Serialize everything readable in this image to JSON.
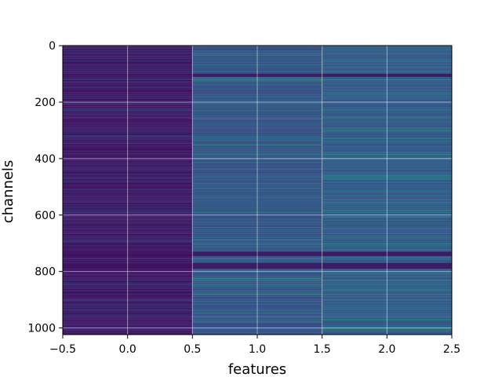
{
  "chart_data": {
    "type": "heatmap",
    "title": "",
    "xlabel": "features",
    "ylabel": "channels",
    "xlim": [
      -0.5,
      2.5
    ],
    "ylim": [
      1023.5,
      -0.5
    ],
    "y_inverted": true,
    "columns": [
      0,
      1,
      2
    ],
    "rows": 1024,
    "colormap": "viridis",
    "value_range": [
      0,
      1
    ],
    "grid": true,
    "x_ticks": [
      -0.5,
      0.0,
      0.5,
      1.0,
      1.5,
      2.0,
      2.5
    ],
    "x_tick_labels": [
      "−0.5",
      "0.0",
      "0.5",
      "1.0",
      "1.5",
      "2.0",
      "2.5"
    ],
    "y_ticks": [
      0,
      200,
      400,
      600,
      800,
      1000
    ],
    "y_tick_labels": [
      "0",
      "200",
      "400",
      "600",
      "800",
      "1000"
    ],
    "column_mean_level": [
      0.1,
      0.28,
      0.3
    ],
    "bright_channels": [
      {
        "channel": 30,
        "level": 0.55
      },
      {
        "channel": 65,
        "level": 0.5
      },
      {
        "channel": 120,
        "level": 0.6
      },
      {
        "channel": 205,
        "level": 0.45
      },
      {
        "channel": 230,
        "level": 0.55
      },
      {
        "channel": 255,
        "level": 0.5
      },
      {
        "channel": 330,
        "level": 0.45
      },
      {
        "channel": 385,
        "level": 0.6
      },
      {
        "channel": 400,
        "level": 0.55
      },
      {
        "channel": 470,
        "level": 0.45
      },
      {
        "channel": 590,
        "level": 0.5
      },
      {
        "channel": 665,
        "level": 0.55
      },
      {
        "channel": 680,
        "level": 0.45
      },
      {
        "channel": 755,
        "level": 0.55
      },
      {
        "channel": 830,
        "level": 0.6
      },
      {
        "channel": 845,
        "level": 0.5
      },
      {
        "channel": 880,
        "level": 0.6
      },
      {
        "channel": 935,
        "level": 0.45
      },
      {
        "channel": 960,
        "level": 0.7
      },
      {
        "channel": 970,
        "level": 0.55
      }
    ],
    "dark_band_channels": [
      [
        100,
        110
      ],
      [
        730,
        745
      ],
      [
        770,
        790
      ]
    ]
  }
}
